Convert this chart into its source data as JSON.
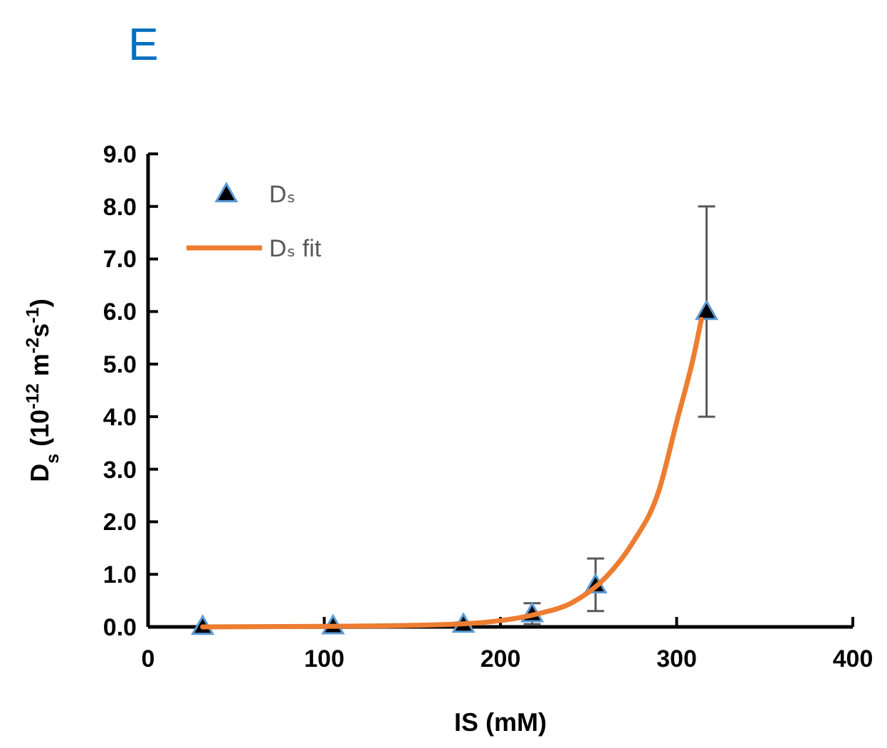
{
  "chart_data": {
    "type": "scatter",
    "title": "E",
    "xlabel": "IS (mM)",
    "ylabel": "D$_{s}$  (10$^{-12}$ m$^{-2}$s$^{-1}$)",
    "series": [
      {
        "name": "Dₛ",
        "color": "#000000",
        "marker": "triangle",
        "x": [
          31,
          105,
          179,
          218,
          254,
          317
        ],
        "values": [
          0.01,
          0.02,
          0.05,
          0.25,
          0.8,
          6.0
        ],
        "errors": [
          null,
          null,
          0.03,
          0.2,
          0.5,
          2.0
        ]
      },
      {
        "name": "Dₛ fit",
        "type": "line",
        "color": "#ed7d31",
        "marker": "none",
        "line_style": "solid",
        "x": [
          31,
          100,
          150,
          180,
          200,
          220,
          240,
          260,
          275,
          290,
          300,
          310,
          314
        ],
        "values": [
          0.0,
          0.01,
          0.03,
          0.06,
          0.12,
          0.24,
          0.45,
          0.95,
          1.6,
          2.6,
          3.9,
          5.2,
          5.85
        ]
      }
    ],
    "xlim": [
      0,
      400
    ],
    "xticks": [
      0,
      100,
      200,
      300,
      400
    ],
    "ylim": [
      0,
      9
    ],
    "yticks": [
      {
        "value": 0,
        "label": "0.0"
      },
      {
        "value": 1,
        "label": "1.0"
      },
      {
        "value": 2,
        "label": "2.0"
      },
      {
        "value": 3,
        "label": "3.0"
      },
      {
        "value": 4,
        "label": "4.0"
      },
      {
        "value": 5,
        "label": "5.0"
      },
      {
        "value": 6,
        "label": "6.0"
      },
      {
        "value": 7,
        "label": "7.0"
      },
      {
        "value": 8,
        "label": "8.0"
      },
      {
        "value": 9,
        "label": "9.0"
      }
    ],
    "grid": false,
    "legend": "top left"
  }
}
